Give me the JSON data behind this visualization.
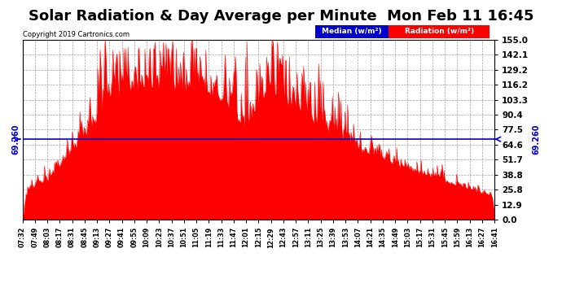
{
  "title": "Solar Radiation & Day Average per Minute  Mon Feb 11 16:45",
  "copyright": "Copyright 2019 Cartronics.com",
  "median_value": 69.26,
  "median_label": "69.260",
  "y_ticks": [
    0.0,
    12.9,
    25.8,
    38.8,
    51.7,
    64.6,
    77.5,
    90.4,
    103.3,
    116.2,
    129.2,
    142.1,
    155.0
  ],
  "ylim": [
    0,
    155.0
  ],
  "x_tick_labels": [
    "07:32",
    "07:49",
    "08:03",
    "08:17",
    "08:31",
    "08:45",
    "09:13",
    "09:27",
    "09:41",
    "09:55",
    "10:09",
    "10:23",
    "10:37",
    "10:51",
    "11:05",
    "11:19",
    "11:33",
    "11:47",
    "12:01",
    "12:15",
    "12:29",
    "12:43",
    "12:57",
    "13:11",
    "13:25",
    "13:39",
    "13:53",
    "14:07",
    "14:21",
    "14:35",
    "14:49",
    "15:03",
    "15:17",
    "15:31",
    "15:45",
    "15:59",
    "16:13",
    "16:27",
    "16:41"
  ],
  "fill_color": "#FF0000",
  "median_line_color": "#0000CC",
  "background_color": "#FFFFFF",
  "grid_color": "#AAAAAA",
  "title_fontsize": 13,
  "legend_median_color": "#0000CC",
  "legend_radiation_color": "#FF0000"
}
